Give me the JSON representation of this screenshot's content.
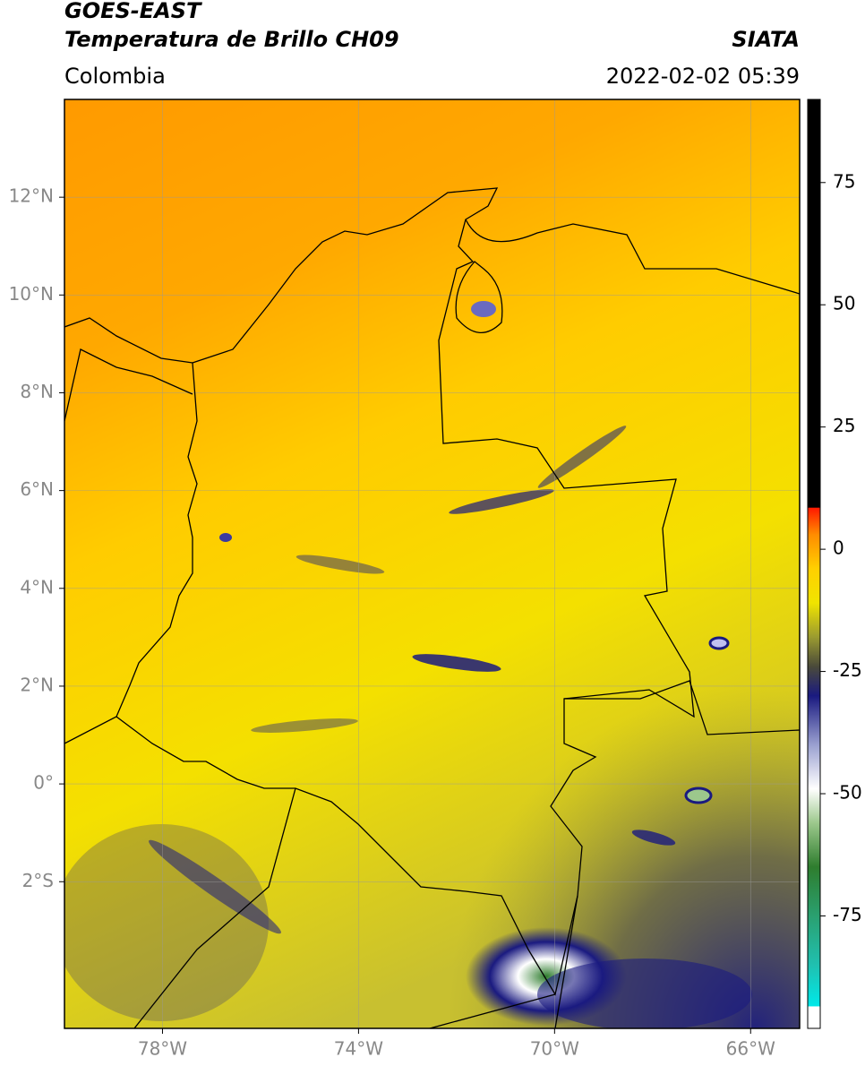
{
  "header": {
    "title": "GOES-EAST",
    "subtitle": "Temperatura de Brillo CH09",
    "source": "SIATA",
    "region": "Colombia",
    "datetime": "2022-02-02 05:39"
  },
  "map": {
    "lon_range": [
      -80,
      -65
    ],
    "lat_range": [
      -5,
      14
    ],
    "grid": true,
    "lon_ticks": [
      {
        "value": -78,
        "label": "78°W"
      },
      {
        "value": -74,
        "label": "74°W"
      },
      {
        "value": -70,
        "label": "70°W"
      },
      {
        "value": -66,
        "label": "66°W"
      }
    ],
    "lat_ticks": [
      {
        "value": 12,
        "label": "12°N"
      },
      {
        "value": 10,
        "label": "10°N"
      },
      {
        "value": 8,
        "label": "8°N"
      },
      {
        "value": 6,
        "label": "6°N"
      },
      {
        "value": 4,
        "label": "4°N"
      },
      {
        "value": 2,
        "label": "2°N"
      },
      {
        "value": 0,
        "label": "0°"
      },
      {
        "value": -2,
        "label": "2°S"
      }
    ]
  },
  "colorbar": {
    "range": [
      -98,
      92
    ],
    "ticks": [
      75,
      50,
      25,
      0,
      -25,
      -50,
      -75
    ],
    "stops": [
      {
        "value": -98,
        "color": "#ffffff"
      },
      {
        "value": -93.6,
        "color": "#ffffff"
      },
      {
        "value": -93.4,
        "color": "#00e8e8"
      },
      {
        "value": -85,
        "color": "#20c0b0"
      },
      {
        "value": -75,
        "color": "#2aa070"
      },
      {
        "value": -65,
        "color": "#2e7d2e"
      },
      {
        "value": -56,
        "color": "#9cc88c"
      },
      {
        "value": -49,
        "color": "#ffffff"
      },
      {
        "value": -40,
        "color": "#9aa0d0"
      },
      {
        "value": -30,
        "color": "#1a1a80"
      },
      {
        "value": -24,
        "color": "#4a4a3a"
      },
      {
        "value": -18,
        "color": "#9a9a30"
      },
      {
        "value": -11,
        "color": "#f0e400"
      },
      {
        "value": -4,
        "color": "#ffd000"
      },
      {
        "value": 3,
        "color": "#ff8c00"
      },
      {
        "value": 8.4,
        "color": "#ff1a00"
      },
      {
        "value": 8.6,
        "color": "#000000"
      },
      {
        "value": 92,
        "color": "#000000"
      }
    ]
  }
}
